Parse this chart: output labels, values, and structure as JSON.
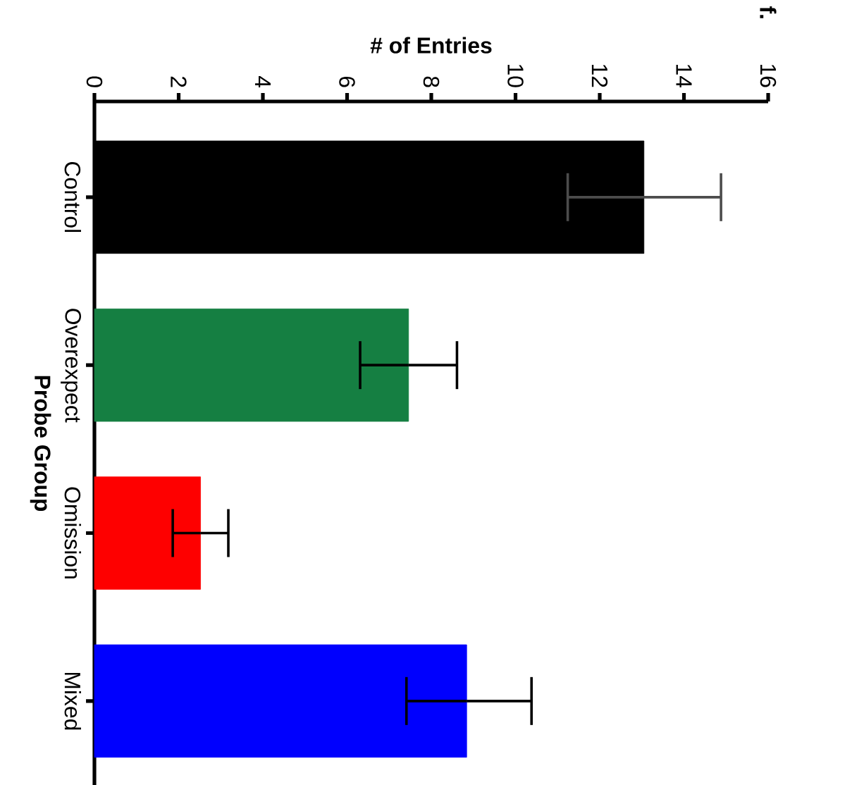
{
  "chart_data": {
    "type": "bar",
    "orientation": "horizontal",
    "title": "f.",
    "xlabel": "# of Entries",
    "ylabel": "Probe Group",
    "categories": [
      "Control",
      "Overexpect",
      "Omission",
      "Mixed"
    ],
    "values": [
      13.05,
      7.46,
      2.52,
      8.84
    ],
    "colors": [
      "#000000",
      "#157f42",
      "#fe0000",
      "#0000fe"
    ],
    "errors": [
      [
        11.24,
        14.88
      ],
      [
        6.31,
        8.61
      ],
      [
        1.86,
        3.18
      ],
      [
        7.41,
        10.38
      ]
    ],
    "xlim": [
      0,
      16
    ],
    "xticks": [
      0,
      2,
      4,
      6,
      8,
      10,
      12,
      14,
      16
    ]
  }
}
